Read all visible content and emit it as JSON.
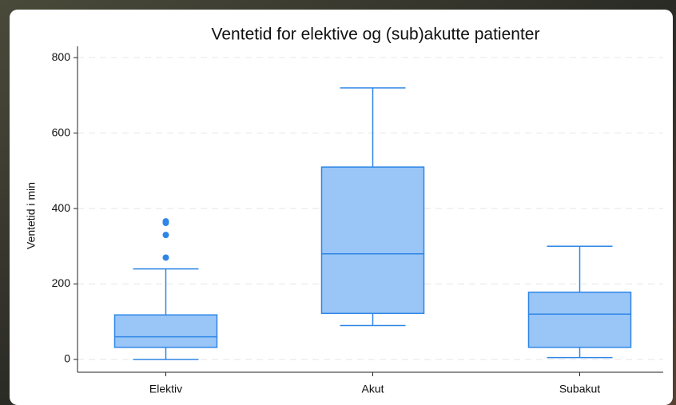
{
  "chart_data": {
    "type": "box",
    "title": "Ventetid for elektive og (sub)akutte patienter",
    "y_label": "Ventetid i min",
    "categories": [
      "Elektiv",
      "Akut",
      "Subakut"
    ],
    "boxes": [
      {
        "min": 0,
        "q1": 32,
        "median": 60,
        "q3": 118,
        "max": 240,
        "outliers": [
          270,
          330,
          362,
          366
        ]
      },
      {
        "min": 90,
        "q1": 122,
        "median": 280,
        "q3": 510,
        "max": 720,
        "outliers": []
      },
      {
        "min": 5,
        "q1": 32,
        "median": 120,
        "q3": 178,
        "max": 300,
        "outliers": []
      }
    ],
    "color": "#99c5f7",
    "edge_color": "#2e86e6",
    "ylim": [
      -34,
      830
    ],
    "yticks": [
      0,
      200,
      400,
      600,
      800
    ],
    "grid": true
  }
}
